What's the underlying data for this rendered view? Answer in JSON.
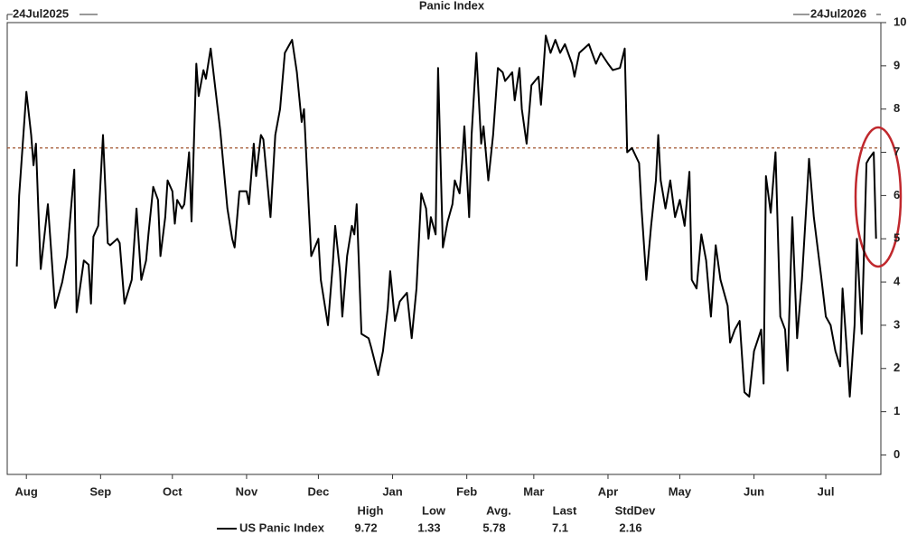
{
  "chart_data": {
    "type": "line",
    "title": "Panic Index",
    "start_label": "24Jul2025",
    "end_label": "24Jul2026",
    "x": [
      4,
      5,
      8,
      10,
      11,
      12,
      13,
      14,
      17,
      18,
      20,
      23,
      25,
      28,
      29,
      32,
      34,
      35,
      36,
      38,
      40,
      42,
      43,
      46,
      47,
      49,
      52,
      54,
      56,
      58,
      59,
      61,
      63,
      64,
      66,
      67,
      69,
      70,
      71,
      73,
      74,
      76,
      77,
      79,
      80,
      82,
      83,
      85,
      87,
      89,
      92,
      94,
      95,
      97,
      100,
      101,
      103,
      104,
      106,
      107,
      109,
      110,
      112,
      114,
      116,
      119,
      121,
      123,
      124,
      126,
      127,
      130,
      131,
      134,
      136,
      137,
      139,
      140,
      142,
      144,
      145,
      146,
      148,
      151,
      152,
      155,
      157,
      159,
      160,
      162,
      164,
      167,
      169,
      171,
      173,
      175,
      176,
      177,
      179,
      180,
      182,
      184,
      186,
      187,
      189,
      190,
      191,
      193,
      194,
      196,
      198,
      199,
      201,
      203,
      205,
      207,
      208,
      211,
      212,
      214,
      215,
      217,
      219,
      222,
      223,
      225,
      227,
      229,
      231,
      233,
      236,
      237,
      239,
      241,
      243,
      246,
      248,
      251,
      253,
      256,
      258,
      259,
      261,
      264,
      265,
      267,
      269,
      271,
      272,
      273,
      275,
      277,
      279,
      281,
      283,
      285,
      286,
      288,
      290,
      292,
      294,
      296,
      298,
      300,
      301,
      302,
      304,
      306,
      308,
      310,
      312,
      315,
      316,
      317,
      319,
      321,
      323,
      325,
      326,
      328,
      330,
      332,
      334,
      335,
      337,
      340,
      342,
      344,
      346,
      348,
      349,
      351,
      352,
      354,
      355,
      357,
      359,
      360,
      362,
      363
    ],
    "series": [
      {
        "name": "US Panic Index",
        "color": "#000000",
        "values": [
          4.36,
          6.0,
          8.4,
          7.4,
          6.7,
          7.2,
          5.7,
          4.3,
          5.8,
          5.0,
          3.4,
          4.0,
          4.6,
          6.6,
          3.3,
          4.5,
          4.4,
          3.5,
          5.05,
          5.3,
          7.4,
          4.9,
          4.85,
          5.0,
          4.9,
          3.5,
          4.05,
          5.7,
          4.05,
          4.5,
          5.1,
          6.2,
          5.9,
          4.6,
          5.5,
          6.35,
          6.1,
          5.35,
          5.9,
          5.7,
          5.8,
          7.0,
          5.4,
          9.05,
          8.3,
          8.9,
          8.7,
          9.4,
          8.45,
          7.5,
          5.7,
          5.0,
          4.8,
          6.1,
          6.1,
          5.8,
          7.2,
          6.45,
          7.4,
          7.3,
          6.1,
          5.5,
          7.4,
          8.0,
          9.3,
          9.6,
          8.85,
          7.7,
          8.0,
          5.7,
          4.6,
          5.0,
          4.05,
          3.0,
          4.4,
          5.3,
          4.25,
          3.2,
          4.6,
          5.3,
          5.1,
          5.8,
          2.8,
          2.7,
          2.5,
          1.85,
          2.4,
          3.4,
          4.25,
          3.1,
          3.55,
          3.75,
          2.7,
          3.85,
          6.05,
          5.7,
          5.0,
          5.5,
          5.1,
          8.95,
          4.8,
          5.4,
          5.8,
          6.35,
          6.05,
          6.75,
          7.6,
          5.5,
          7.4,
          9.3,
          7.2,
          7.6,
          6.35,
          7.4,
          8.95,
          8.85,
          8.65,
          8.85,
          8.2,
          8.95,
          8.0,
          7.2,
          8.55,
          8.75,
          8.1,
          9.7,
          9.3,
          9.6,
          9.3,
          9.5,
          9.05,
          8.75,
          9.3,
          9.4,
          9.5,
          9.05,
          9.3,
          9.05,
          8.9,
          8.95,
          9.4,
          7.0,
          7.1,
          6.75,
          5.7,
          4.05,
          5.3,
          6.35,
          7.4,
          6.35,
          5.7,
          6.35,
          5.5,
          5.9,
          5.3,
          6.55,
          4.05,
          3.85,
          5.1,
          4.5,
          3.2,
          4.85,
          4.05,
          3.65,
          3.45,
          2.6,
          2.9,
          3.1,
          1.45,
          1.35,
          2.4,
          2.9,
          1.65,
          6.45,
          5.6,
          7.0,
          3.2,
          2.9,
          1.95,
          5.5,
          2.7,
          4.05,
          5.9,
          6.85,
          5.5,
          4.15,
          3.2,
          3.0,
          2.4,
          2.05,
          3.85,
          2.25,
          1.35,
          3.0,
          5.0,
          2.8,
          6.75,
          6.85,
          7.0,
          5.0
        ]
      }
    ],
    "xlim": [
      0,
      365
    ],
    "xticks": [
      {
        "value": 8,
        "label": "Aug"
      },
      {
        "value": 39,
        "label": "Sep"
      },
      {
        "value": 69,
        "label": "Oct"
      },
      {
        "value": 100,
        "label": "Nov"
      },
      {
        "value": 130,
        "label": "Dec"
      },
      {
        "value": 161,
        "label": "Jan"
      },
      {
        "value": 192,
        "label": "Feb"
      },
      {
        "value": 220,
        "label": "Mar"
      },
      {
        "value": 251,
        "label": "Apr"
      },
      {
        "value": 281,
        "label": "May"
      },
      {
        "value": 312,
        "label": "Jun"
      },
      {
        "value": 342,
        "label": "Jul"
      }
    ],
    "ylim": [
      -0.45,
      10
    ],
    "yticks": [
      0,
      1,
      2,
      3,
      4,
      5,
      6,
      7,
      8,
      9,
      10
    ],
    "reference_line": {
      "value": 7.1,
      "color": "#a0522d"
    },
    "stats": [
      {
        "label": "High",
        "value": 9.72
      },
      {
        "label": "Low",
        "value": 1.33
      },
      {
        "label": "Avg.",
        "value": 5.78
      },
      {
        "label": "Last",
        "value": 7.1
      },
      {
        "label": "StdDev",
        "value": 2.16
      }
    ]
  }
}
